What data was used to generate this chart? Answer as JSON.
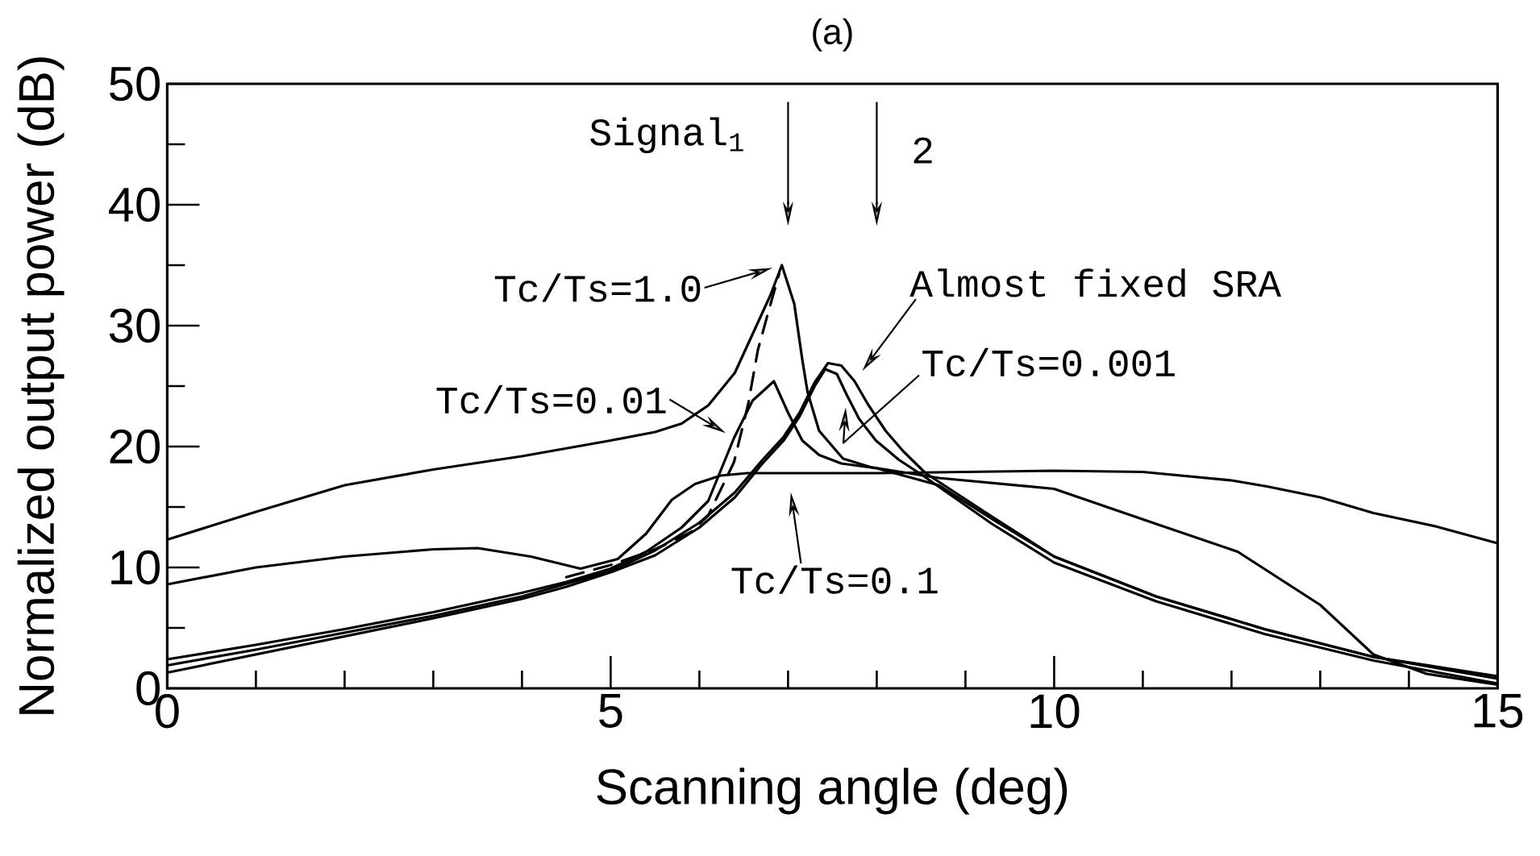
{
  "chart_data": {
    "type": "line",
    "title": "(a)",
    "xlabel": "Scanning angle (deg)",
    "ylabel": "Normalized output power (dB)",
    "xlim": [
      0,
      15
    ],
    "ylim": [
      0,
      50
    ],
    "xticks": [
      0,
      {
        "value": 1,
        "label": null
      },
      {
        "value": 2,
        "label": null
      },
      {
        "value": 3,
        "label": null
      },
      {
        "value": 4,
        "label": null
      },
      5,
      {
        "value": 6,
        "label": null
      },
      {
        "value": 7,
        "label": null
      },
      {
        "value": 8,
        "label": null
      },
      {
        "value": 9,
        "label": null
      },
      10,
      {
        "value": 11,
        "label": null
      },
      {
        "value": 12,
        "label": null
      },
      {
        "value": 13,
        "label": null
      },
      {
        "value": 14,
        "label": null
      },
      15
    ],
    "yticks": [
      0,
      {
        "value": 5,
        "label": null
      },
      10,
      {
        "value": 15,
        "label": null
      },
      20,
      {
        "value": 25,
        "label": null
      },
      30,
      {
        "value": 35,
        "label": null
      },
      40,
      {
        "value": 45,
        "label": null
      },
      50
    ],
    "marker": "none",
    "line_style": "solid",
    "series": [
      {
        "color": "#000000",
        "x": [
          0,
          1,
          2,
          3,
          4,
          5,
          5.5,
          5.8,
          6.1,
          6.4,
          6.6,
          6.8,
          6.93,
          7.07,
          7.16,
          7.22,
          7.35,
          7.62,
          7.93,
          8.7,
          10,
          11.15,
          12.07,
          13,
          13.6,
          14.2,
          15
        ],
        "values": [
          12.3,
          14.6,
          16.8,
          18.1,
          19.2,
          20.5,
          21.2,
          21.9,
          23.4,
          26.1,
          29.3,
          32.5,
          35.0,
          31.8,
          27.2,
          24.5,
          21.3,
          19.0,
          18.3,
          17.4,
          16.5,
          13.6,
          11.3,
          6.9,
          2.8,
          1.2,
          0.3
        ]
      },
      {
        "color": "#000000",
        "line_style": "dashed",
        "x": [
          4.5,
          5.0,
          5.5,
          5.9,
          6.1,
          6.39,
          6.55,
          6.66,
          6.78,
          6.9
        ],
        "values": [
          9.2,
          10.2,
          11.5,
          12.9,
          14.3,
          18.7,
          23.5,
          28.0,
          31.2,
          34.3
        ]
      },
      {
        "color": "#000000",
        "x": [
          0,
          1,
          2,
          3,
          4,
          4.5,
          5,
          5.4,
          5.8,
          6.1,
          6.39,
          6.6,
          6.84,
          7.0,
          7.16,
          7.35,
          7.6,
          8.0,
          8.7,
          9.3,
          10,
          11.15,
          12.37,
          13.6,
          15
        ],
        "values": [
          2.4,
          3.6,
          4.9,
          6.3,
          7.9,
          8.8,
          9.9,
          11.3,
          13.3,
          15.5,
          20.7,
          23.8,
          25.4,
          22.8,
          20.5,
          19.3,
          18.6,
          18.2,
          16.8,
          14.0,
          10.9,
          7.6,
          4.9,
          2.6,
          0.8
        ]
      },
      {
        "color": "#000000",
        "x": [
          0,
          1,
          2,
          3,
          4,
          4.5,
          5,
          5.5,
          6.0,
          6.4,
          6.7,
          6.95,
          7.13,
          7.3,
          7.42,
          7.55,
          7.66,
          7.8,
          7.99,
          8.25,
          8.5,
          9.3,
          10,
          11.15,
          12.37,
          13.6,
          15
        ],
        "values": [
          1.3,
          2.8,
          4.3,
          5.8,
          7.4,
          8.4,
          9.6,
          11.0,
          13.3,
          15.8,
          18.5,
          20.5,
          22.5,
          25.0,
          26.4,
          26.0,
          24.3,
          22.3,
          20.5,
          18.9,
          17.7,
          13.6,
          10.4,
          7.2,
          4.5,
          2.3,
          0.4
        ]
      },
      {
        "color": "#000000",
        "x": [
          0,
          1,
          2,
          3,
          4,
          5,
          5.5,
          6.0,
          6.4,
          6.7,
          6.95,
          7.13,
          7.3,
          7.45,
          7.6,
          7.75,
          7.9,
          8.1,
          8.3,
          8.55,
          9.3,
          10,
          11.15,
          12.37,
          13.6,
          15
        ],
        "values": [
          1.9,
          3.2,
          4.6,
          6.0,
          7.6,
          9.7,
          11.4,
          13.7,
          16.2,
          18.8,
          20.8,
          22.8,
          25.3,
          26.9,
          26.7,
          25.4,
          23.5,
          21.3,
          19.6,
          17.8,
          14.2,
          10.9,
          7.6,
          4.9,
          2.6,
          1.0
        ]
      },
      {
        "color": "#000000",
        "x": [
          0,
          1,
          2,
          3,
          3.5,
          4.1,
          4.66,
          5.08,
          5.4,
          5.69,
          5.95,
          6.24,
          6.54,
          7,
          8,
          9,
          10,
          11,
          12,
          12.4,
          13,
          13.6,
          14.3,
          15
        ],
        "values": [
          8.6,
          10.0,
          10.9,
          11.5,
          11.6,
          10.9,
          9.9,
          10.7,
          12.8,
          15.6,
          16.9,
          17.6,
          17.8,
          17.8,
          17.8,
          17.9,
          18.0,
          17.9,
          17.2,
          16.7,
          15.8,
          14.5,
          13.4,
          12.0
        ]
      }
    ],
    "ref_lines": [
      {
        "axis": "x",
        "value": 7
      },
      {
        "axis": "x",
        "value": 8
      }
    ],
    "annotations": [
      "Signal$_{1}$",
      "2",
      {
        "text": "Tc/Ts=1.0",
        "x": 6.93,
        "y": 35.0
      },
      {
        "text": "Tc/Ts=0.01",
        "x": 6.39,
        "y": 20.7
      },
      {
        "text": "Tc/Ts=0.1",
        "x": 7,
        "y": 17.8
      },
      {
        "text": "Almost fixed SRA",
        "x": 7.75,
        "y": 25.4
      },
      {
        "text": "Tc/Ts=0.001",
        "x": 7.66,
        "y": 24.3
      }
    ]
  }
}
